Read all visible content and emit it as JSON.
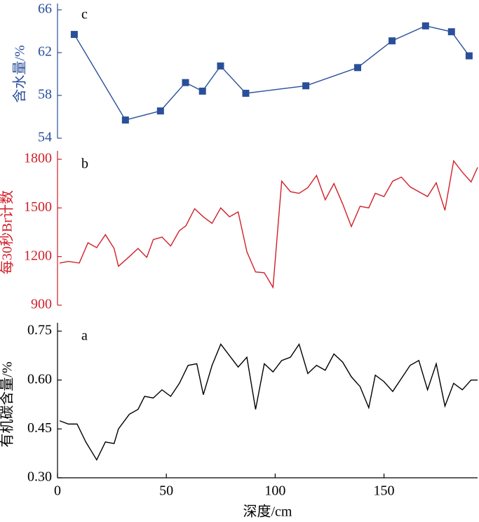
{
  "chart_data": [
    {
      "type": "line",
      "annotation": "c",
      "ylabel": "含水量/%",
      "color": "#2a4f9a",
      "marker": "square",
      "xlim": [
        0,
        193
      ],
      "ylim": [
        54,
        66
      ],
      "yticks": [
        54,
        58,
        62,
        66
      ],
      "x": [
        7.7,
        31.2,
        47.3,
        58.8,
        66.6,
        74.9,
        86.5,
        114.1,
        137.9,
        153.7,
        169.1,
        181,
        189.1
      ],
      "values": [
        63.7,
        55.7,
        56.55,
        59.2,
        58.4,
        60.75,
        58.2,
        58.9,
        60.6,
        63.1,
        64.5,
        63.95,
        61.7
      ]
    },
    {
      "type": "line",
      "annotation": "b",
      "ylabel": "每30秒Br计数",
      "color": "#d0202a",
      "xlim": [
        0,
        193
      ],
      "ylim": [
        900,
        1800
      ],
      "yticks": [
        900,
        1200,
        1500,
        1800
      ],
      "x": [
        1,
        5,
        10,
        14,
        18,
        22,
        26,
        28,
        33,
        37,
        41,
        44,
        48,
        52,
        56,
        59,
        63,
        67,
        71,
        75,
        79,
        83,
        87,
        91,
        95,
        99,
        103,
        107,
        111,
        115,
        119,
        123,
        127,
        131,
        135,
        139,
        143,
        146,
        150,
        154,
        158,
        162,
        166,
        170,
        174,
        178,
        182,
        186,
        190,
        193
      ],
      "values": [
        1160,
        1170,
        1160,
        1285,
        1255,
        1335,
        1250,
        1140,
        1200,
        1250,
        1195,
        1305,
        1320,
        1265,
        1360,
        1390,
        1495,
        1445,
        1405,
        1500,
        1445,
        1475,
        1230,
        1105,
        1100,
        1010,
        1665,
        1600,
        1590,
        1625,
        1700,
        1550,
        1650,
        1525,
        1385,
        1510,
        1500,
        1590,
        1570,
        1665,
        1690,
        1630,
        1600,
        1570,
        1655,
        1485,
        1790,
        1720,
        1660,
        1750
      ]
    },
    {
      "type": "line",
      "annotation": "a",
      "ylabel": "有机碳含量/%",
      "color": "#000000",
      "xlabel": "深度/cm",
      "xlim": [
        0,
        193
      ],
      "xticks": [
        0,
        50,
        100,
        150
      ],
      "ylim": [
        0.3,
        0.75
      ],
      "yticks": [
        {
          "value": 0.3,
          "label": "0.30"
        },
        0.45,
        {
          "value": 0.6,
          "label": "0.60"
        },
        0.75
      ],
      "x": [
        1,
        5,
        9,
        13,
        18,
        22,
        26,
        28,
        33,
        37,
        40,
        44,
        48,
        52,
        56,
        60,
        64,
        67,
        71,
        75,
        79,
        83,
        87,
        91,
        95,
        99,
        103,
        107,
        111,
        115,
        119,
        123,
        127,
        131,
        135,
        139,
        143,
        146,
        150,
        154,
        158,
        162,
        166,
        170,
        174,
        178,
        182,
        186,
        190,
        193
      ],
      "values": [
        0.475,
        0.465,
        0.465,
        0.41,
        0.355,
        0.41,
        0.405,
        0.45,
        0.495,
        0.51,
        0.55,
        0.545,
        0.57,
        0.55,
        0.59,
        0.645,
        0.65,
        0.555,
        0.645,
        0.71,
        0.675,
        0.64,
        0.67,
        0.51,
        0.65,
        0.625,
        0.66,
        0.67,
        0.71,
        0.62,
        0.645,
        0.63,
        0.68,
        0.655,
        0.61,
        0.58,
        0.515,
        0.615,
        0.595,
        0.565,
        0.605,
        0.645,
        0.66,
        0.57,
        0.65,
        0.52,
        0.59,
        0.57,
        0.6,
        0.6
      ]
    }
  ]
}
